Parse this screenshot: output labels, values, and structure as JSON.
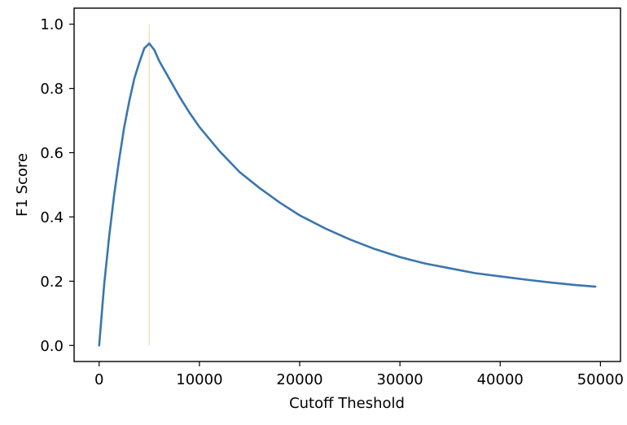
{
  "chart_data": {
    "type": "line",
    "title": "",
    "xlabel": "Cutoff Theshold",
    "ylabel": "F1 Score",
    "xlim": [
      -2500,
      52000
    ],
    "ylim": [
      -0.05,
      1.05
    ],
    "xticks": [
      0,
      10000,
      20000,
      30000,
      40000,
      50000
    ],
    "xtick_labels": [
      "0",
      "10000",
      "20000",
      "30000",
      "40000",
      "50000"
    ],
    "yticks": [
      0.0,
      0.2,
      0.4,
      0.6,
      0.8,
      1.0
    ],
    "ytick_labels": [
      "0.0",
      "0.2",
      "0.4",
      "0.6",
      "0.8",
      "1.0"
    ],
    "grid": false,
    "series": [
      {
        "color": "#3a76b0",
        "x": [
          0,
          500,
          1000,
          1500,
          2000,
          2500,
          3000,
          3500,
          4000,
          4500,
          5000,
          5500,
          6000,
          7000,
          8000,
          9000,
          10000,
          12000,
          14000,
          16000,
          18000,
          20000,
          22500,
          25000,
          27500,
          30000,
          32500,
          35000,
          37500,
          40000,
          42500,
          45000,
          47500,
          49500
        ],
        "y": [
          0.0,
          0.19,
          0.34,
          0.47,
          0.58,
          0.68,
          0.76,
          0.83,
          0.88,
          0.925,
          0.94,
          0.92,
          0.885,
          0.83,
          0.775,
          0.725,
          0.68,
          0.605,
          0.54,
          0.49,
          0.445,
          0.405,
          0.365,
          0.33,
          0.3,
          0.275,
          0.255,
          0.24,
          0.225,
          0.215,
          0.205,
          0.196,
          0.188,
          0.183
        ]
      }
    ],
    "vline": {
      "x": 5000,
      "ymin": 0.0,
      "ymax": 1.0,
      "color": "#f5deb3"
    }
  }
}
